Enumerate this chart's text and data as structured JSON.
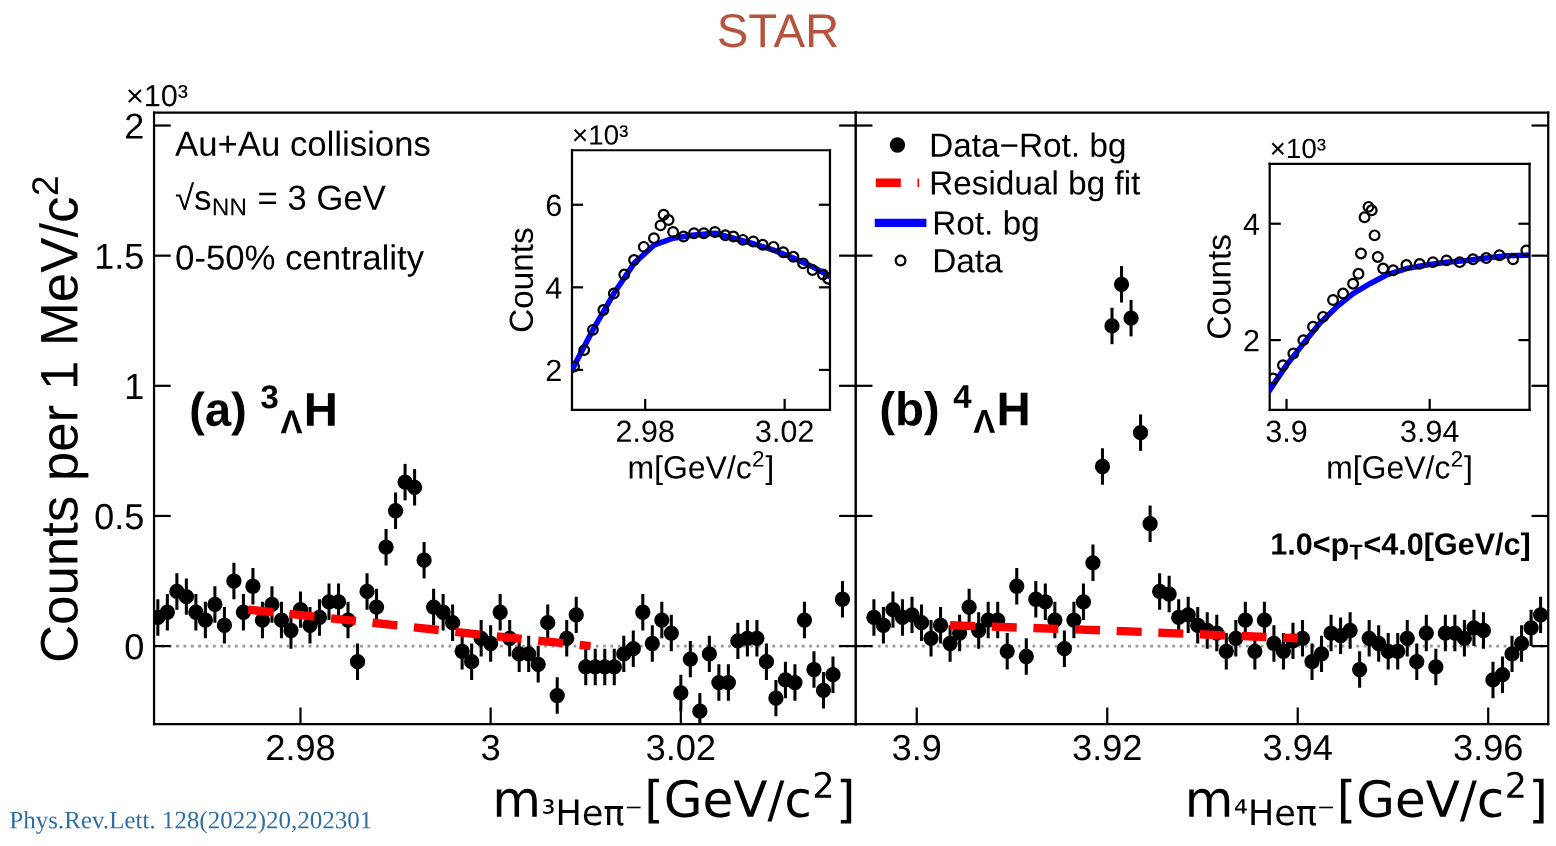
{
  "chart_data": [
    {
      "type": "scatter",
      "title": "STAR",
      "ylabel": "Counts per 1 MeV/c$^{2}$",
      "xlabel": "m$_{³Heπ⁻}$[GeV/c$^{2}$]",
      "xlim": [
        2.9646,
        3.0384
      ],
      "xticks": [
        2.98,
        3,
        3.02
      ],
      "ylim": [
        -0.3,
        2.05
      ],
      "yticks": [
        0,
        0.5,
        1,
        1.5,
        2
      ],
      "legend": false,
      "annotations": [
        "×10³",
        "Au+Au collisions",
        "√s$_{NN}$ = 3 GeV",
        "0-50% centrality",
        "(a) $^{3}$$_{Λ}$H",
        "Phys.Rev.Lett. 128(2022)20,202301"
      ],
      "ref_lines": [
        {
          "axis": "y",
          "value": 0,
          "color": "#999999",
          "line_style": "dotted"
        }
      ],
      "series": [
        {
          "type": "scatter",
          "marker": "circle",
          "color": "#000000",
          "x": [
            2.965,
            2.966,
            2.967,
            2.968,
            2.969,
            2.97,
            2.971,
            2.972,
            2.973,
            2.974,
            2.975,
            2.976,
            2.977,
            2.978,
            2.979,
            2.98,
            2.981,
            2.982,
            2.983,
            2.984,
            2.985,
            2.986,
            2.987,
            2.988,
            2.989,
            2.99,
            2.991,
            2.992,
            2.993,
            2.994,
            2.995,
            2.996,
            2.997,
            2.998,
            2.999,
            3.0,
            3.001,
            3.002,
            3.003,
            3.004,
            3.005,
            3.006,
            3.007,
            3.008,
            3.009,
            3.01,
            3.011,
            3.012,
            3.013,
            3.014,
            3.015,
            3.016,
            3.017,
            3.018,
            3.019,
            3.02,
            3.021,
            3.022,
            3.023,
            3.024,
            3.025,
            3.026,
            3.027,
            3.028,
            3.029,
            3.03,
            3.031,
            3.032,
            3.033,
            3.034,
            3.035,
            3.036,
            3.037
          ],
          "values": [
            0.11,
            0.13,
            0.21,
            0.19,
            0.13,
            0.1,
            0.16,
            0.08,
            0.25,
            0.13,
            0.23,
            0.1,
            0.16,
            0.1,
            0.06,
            0.14,
            0.08,
            0.11,
            0.17,
            0.17,
            0.1,
            -0.06,
            0.21,
            0.15,
            0.38,
            0.52,
            0.63,
            0.61,
            0.33,
            0.15,
            0.13,
            0.09,
            -0.02,
            -0.06,
            0.03,
            0.01,
            0.13,
            0.03,
            -0.03,
            -0.03,
            -0.07,
            0.09,
            -0.19,
            0.03,
            0.12,
            -0.08,
            -0.08,
            -0.08,
            -0.08,
            -0.03,
            -0.01,
            0.13,
            0.01,
            0.1,
            0.05,
            -0.18,
            -0.05,
            -0.25,
            -0.03,
            -0.14,
            -0.14,
            0.02,
            0.03,
            0.03,
            -0.06,
            -0.2,
            -0.13,
            -0.14,
            0.1,
            -0.09,
            -0.17,
            -0.11,
            0.18
          ],
          "errors": [
            0.07,
            0.07,
            0.07,
            0.07,
            0.07,
            0.07,
            0.07,
            0.07,
            0.07,
            0.07,
            0.07,
            0.07,
            0.07,
            0.07,
            0.07,
            0.07,
            0.07,
            0.07,
            0.07,
            0.07,
            0.07,
            0.07,
            0.07,
            0.07,
            0.07,
            0.07,
            0.07,
            0.07,
            0.07,
            0.07,
            0.07,
            0.07,
            0.07,
            0.07,
            0.07,
            0.07,
            0.07,
            0.07,
            0.07,
            0.07,
            0.07,
            0.07,
            0.07,
            0.07,
            0.07,
            0.07,
            0.07,
            0.07,
            0.07,
            0.07,
            0.07,
            0.07,
            0.07,
            0.07,
            0.07,
            0.07,
            0.07,
            0.07,
            0.07,
            0.07,
            0.07,
            0.07,
            0.07,
            0.07,
            0.07,
            0.07,
            0.07,
            0.07,
            0.07,
            0.07,
            0.07,
            0.07,
            0.07
          ]
        },
        {
          "type": "line",
          "marker": "none",
          "color": "#ff0000",
          "line_style": "dashed",
          "x": [
            2.9745,
            2.985,
            3.0,
            3.0105
          ],
          "values": [
            0.14,
            0.1,
            0.04,
            0.0
          ]
        }
      ]
    },
    {
      "type": "scatter",
      "xlabel": "m$_{⁴Heπ⁻}$[GeV/c$^{2}$]",
      "tick_labels": "x",
      "xlim": [
        3.8936,
        3.9663
      ],
      "xticks": [
        3.9,
        3.92,
        3.94,
        3.96
      ],
      "ylim": [
        -0.3,
        2.05
      ],
      "legend": "top left",
      "annotations": [
        "(b) $^{4}$$_{Λ}$H",
        "1.0<p$_{T}$<4.0[GeV/c]"
      ],
      "ref_lines": [
        {
          "axis": "y",
          "value": 0,
          "color": "#999999",
          "line_style": "dotted"
        }
      ],
      "series": [
        {
          "type": "scatter",
          "marker": "circle",
          "name": "Data−Rot. bg",
          "color": "#000000",
          "x": [
            3.8955,
            3.8965,
            3.8975,
            3.8985,
            3.8995,
            3.9005,
            3.9015,
            3.9025,
            3.9035,
            3.9045,
            3.9055,
            3.9065,
            3.9075,
            3.9085,
            3.9095,
            3.9105,
            3.9115,
            3.9125,
            3.9135,
            3.9145,
            3.9155,
            3.9165,
            3.9175,
            3.9185,
            3.9195,
            3.9205,
            3.9215,
            3.9225,
            3.9235,
            3.9245,
            3.9255,
            3.9265,
            3.9275,
            3.9285,
            3.9295,
            3.9305,
            3.9315,
            3.9325,
            3.9335,
            3.9345,
            3.9355,
            3.9365,
            3.9375,
            3.9385,
            3.9395,
            3.9405,
            3.9415,
            3.9425,
            3.9435,
            3.9445,
            3.9455,
            3.9465,
            3.9475,
            3.9485,
            3.9495,
            3.9505,
            3.9515,
            3.9525,
            3.9535,
            3.9545,
            3.9555,
            3.9565,
            3.9575,
            3.9585,
            3.9595,
            3.9605,
            3.9615,
            3.9625,
            3.9635,
            3.9645,
            3.9655
          ],
          "values": [
            0.11,
            0.08,
            0.14,
            0.11,
            0.12,
            0.09,
            0.03,
            0.08,
            0.01,
            0.05,
            0.15,
            0.06,
            0.1,
            0.1,
            -0.02,
            0.23,
            -0.04,
            0.18,
            0.17,
            0.1,
            -0.01,
            0.1,
            0.17,
            0.32,
            0.69,
            1.23,
            1.39,
            1.26,
            0.82,
            0.47,
            0.21,
            0.2,
            0.11,
            0.12,
            0.08,
            0.06,
            0.05,
            -0.02,
            0.03,
            0.1,
            -0.02,
            0.1,
            0.01,
            -0.02,
            0.02,
            0.03,
            -0.06,
            -0.03,
            0.05,
            0.04,
            0.06,
            -0.09,
            0.03,
            0.01,
            -0.02,
            -0.02,
            0.03,
            -0.06,
            0.05,
            -0.08,
            0.05,
            0.05,
            0.03,
            0.07,
            0.06,
            -0.13,
            -0.11,
            -0.03,
            0.01,
            0.07,
            0.12
          ],
          "errors": [
            0.07,
            0.07,
            0.07,
            0.07,
            0.07,
            0.07,
            0.07,
            0.07,
            0.07,
            0.07,
            0.07,
            0.07,
            0.07,
            0.07,
            0.07,
            0.07,
            0.07,
            0.07,
            0.07,
            0.07,
            0.07,
            0.07,
            0.07,
            0.07,
            0.07,
            0.07,
            0.07,
            0.07,
            0.07,
            0.07,
            0.07,
            0.07,
            0.07,
            0.07,
            0.07,
            0.07,
            0.07,
            0.07,
            0.07,
            0.07,
            0.07,
            0.07,
            0.07,
            0.07,
            0.07,
            0.07,
            0.07,
            0.07,
            0.07,
            0.07,
            0.07,
            0.07,
            0.07,
            0.07,
            0.07,
            0.07,
            0.07,
            0.07,
            0.07,
            0.07,
            0.07,
            0.07,
            0.07,
            0.07,
            0.07,
            0.07,
            0.07,
            0.07,
            0.07,
            0.07,
            0.07
          ]
        },
        {
          "type": "line",
          "marker": "none",
          "name": "Residual bg fit",
          "color": "#ff0000",
          "line_style": "dashed",
          "x": [
            3.9035,
            3.92,
            3.94
          ],
          "values": [
            0.08,
            0.06,
            0.03
          ]
        }
      ]
    },
    {
      "type": "scatter",
      "xlabel": "m[GeV/c$^{2}$]",
      "ylabel": "Counts",
      "xlim": [
        2.959,
        3.033
      ],
      "xticks": [
        2.98,
        3.02
      ],
      "ylim": [
        1.03,
        7.32
      ],
      "yticks": [
        2,
        4,
        6
      ],
      "legend": false,
      "annotations": [
        "×10³"
      ],
      "series": [
        {
          "type": "line",
          "marker": "none",
          "color": "#0000ff",
          "x": [
            2.959,
            2.965,
            2.971,
            2.9768,
            2.9825,
            2.988,
            2.994,
            3.0,
            3.0053,
            3.011,
            3.0168,
            3.0225,
            3.028,
            3.033
          ],
          "values": [
            2.0,
            2.97,
            3.85,
            4.58,
            5.02,
            5.19,
            5.27,
            5.31,
            5.19,
            5.06,
            4.9,
            4.71,
            4.5,
            4.26
          ]
        },
        {
          "type": "scatter",
          "marker": "circle",
          "color": "#000000",
          "x": [
            2.9596,
            2.9625,
            2.965,
            2.968,
            2.971,
            2.974,
            2.9768,
            2.9796,
            2.9825,
            2.9844,
            2.9853,
            2.9867,
            2.988,
            2.991,
            2.994,
            2.9968,
            3.0,
            3.003,
            3.0053,
            3.008,
            3.011,
            3.0137,
            3.0168,
            3.0196,
            3.0225,
            3.0253,
            3.028,
            3.031,
            3.0325
          ],
          "values": [
            2.08,
            2.48,
            2.97,
            3.45,
            3.85,
            4.31,
            4.66,
            4.98,
            5.19,
            5.5,
            5.76,
            5.63,
            5.34,
            5.23,
            5.31,
            5.31,
            5.34,
            5.26,
            5.23,
            5.15,
            5.11,
            5.03,
            4.98,
            4.85,
            4.74,
            4.58,
            4.42,
            4.31,
            4.21
          ]
        }
      ]
    },
    {
      "type": "scatter",
      "xlabel": "m[GeV/c$^{2}$]",
      "ylabel": "Counts",
      "xlim": [
        3.8953,
        3.9679
      ],
      "xticks": [
        3.9,
        3.94
      ],
      "ylim": [
        0.8,
        5.03
      ],
      "yticks": [
        2,
        4
      ],
      "legend": "left",
      "annotations": [
        "×10³"
      ],
      "series": [
        {
          "type": "line",
          "marker": "none",
          "name": "Rot. bg",
          "color": "#0000ff",
          "x": [
            3.8953,
            3.9,
            3.9047,
            3.9093,
            3.914,
            3.9186,
            3.9233,
            3.9279,
            3.9335,
            3.9391,
            3.9447,
            3.9502,
            3.9558,
            3.9614,
            3.9679
          ],
          "values": [
            1.14,
            1.57,
            1.94,
            2.29,
            2.57,
            2.8,
            2.97,
            3.12,
            3.23,
            3.29,
            3.34,
            3.37,
            3.41,
            3.45,
            3.46
          ]
        },
        {
          "type": "scatter",
          "marker": "circle",
          "name": "Data",
          "color": "#000000",
          "x": [
            3.8963,
            3.899,
            3.9019,
            3.9047,
            3.9074,
            3.9102,
            3.913,
            3.9158,
            3.9186,
            3.9201,
            3.9208,
            3.9218,
            3.9229,
            3.9238,
            3.9246,
            3.9255,
            3.927,
            3.9298,
            3.9335,
            3.9372,
            3.9409,
            3.9447,
            3.9484,
            3.9521,
            3.9558,
            3.9595,
            3.9633,
            3.967
          ],
          "values": [
            1.34,
            1.57,
            1.77,
            2.0,
            2.23,
            2.4,
            2.69,
            2.8,
            2.97,
            3.14,
            3.49,
            4.11,
            4.29,
            4.23,
            3.8,
            3.43,
            3.23,
            3.2,
            3.29,
            3.31,
            3.34,
            3.37,
            3.34,
            3.39,
            3.41,
            3.46,
            3.39,
            3.54
          ]
        }
      ]
    }
  ]
}
